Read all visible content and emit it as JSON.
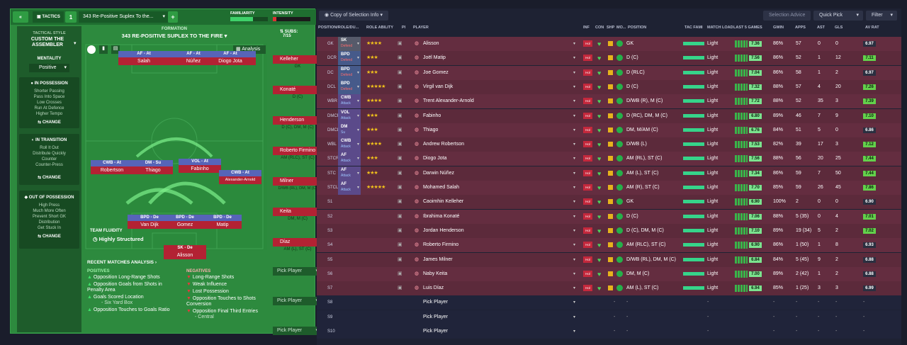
{
  "tactics": {
    "tab_label": "TACTICS",
    "slot_number": "1",
    "tactic_name": "343 Re-Positive  Suplex To the...",
    "familiarity_label": "FAMILIARITY",
    "intensity_label": "INTENSITY"
  },
  "style": {
    "tactical_style_label": "TACTICAL STYLE",
    "tactical_style": "CUSTOM THE ASSEMBLER",
    "mentality_label": "MENTALITY",
    "mentality": "Positive",
    "in_possession": {
      "title": "IN POSSESSION",
      "items": [
        "Shorter Passing",
        "Pass Into Space",
        "Low Crosses",
        "Run At Defence",
        "Higher Tempo"
      ]
    },
    "in_transition": {
      "title": "IN TRANSITION",
      "items": [
        "Roll It Out",
        "Distribute Quickly",
        "Counter",
        "Counter-Press"
      ]
    },
    "out_of_possession": {
      "title": "OUT OF POSSESSION",
      "items": [
        "High Press",
        "Much More Often",
        "Prevent Short GK",
        "Distribution",
        "Get Stuck In"
      ]
    },
    "change_label": "CHANGE"
  },
  "formation": {
    "label": "FORMATION",
    "name": "343 RE-POSITIVE  SUPLEX TO THE FIRE",
    "subs_label": "SUBS:",
    "subs_count": "7/15",
    "analysis_label": "Analysis",
    "fluidity_label": "TEAM FLUIDITY",
    "fluidity": "Highly Structured"
  },
  "pitch_players": [
    {
      "role": "AF - At",
      "name": "Salah"
    },
    {
      "role": "AF - At",
      "name": "Núñez"
    },
    {
      "role": "AF - At",
      "name": "Diogo Jota"
    },
    {
      "role": "CWB - At",
      "name": "Robertson"
    },
    {
      "role": "DM - Su",
      "name": "Thiago"
    },
    {
      "role": "VOL - At",
      "name": "Fabinho"
    },
    {
      "role": "CWB - At",
      "name": "Alexander-Arnold"
    },
    {
      "role": "BPD - De",
      "name": "Van Dijk"
    },
    {
      "role": "BPD - De",
      "name": "Gomez"
    },
    {
      "role": "BPD - De",
      "name": "Matip"
    },
    {
      "role": "SK - De",
      "name": "Alisson"
    }
  ],
  "subs": [
    {
      "name": "Kelleher",
      "pos": "GK"
    },
    {
      "name": "Konaté",
      "pos": "D (C)"
    },
    {
      "name": "Henderson",
      "pos": "D (C), DM, M (C)"
    },
    {
      "name": "Roberto Firmino",
      "pos": "AM (RLC), ST (C)"
    },
    {
      "name": "Milner",
      "pos": "D/WB (RL), DM, M (C)"
    },
    {
      "name": "Keita",
      "pos": "DM, M (C)"
    },
    {
      "name": "Díaz",
      "pos": "AM (L), ST (C)"
    }
  ],
  "pick_player_label": "Pick Player",
  "analysis": {
    "title": "RECENT MATCHES ANALYSIS",
    "positives_label": "POSITIVES",
    "negatives_label": "NEGATIVES",
    "positives": [
      "Opposition Long-Range Shots",
      "Opposition Goals from Shots in Penalty Area",
      "Goals Scored Location",
      "- Six Yard Box",
      "Opposition Touches to Goals Ratio"
    ],
    "negatives": [
      "Long-Range Shots",
      "Weak Influence",
      "Lost Possession",
      "Opposition Touches to Shots Conversion",
      "Opposition Final Third Entries",
      "- Central"
    ]
  },
  "toolbar": {
    "copy_label": "Copy of Selection Info",
    "selection_advice": "Selection Advice",
    "quick_pick": "Quick Pick",
    "filter": "Filter"
  },
  "columns": [
    "POSITION/ROLE/DU...",
    "ROLE ABILITY",
    "PI",
    "PLAYER",
    "INF",
    "CON",
    "SHP",
    "MO...",
    "POSITION",
    "TAC FAMI",
    "MATCH LOAD",
    "LAST 5 GAMES",
    "GWIN",
    "APPS",
    "AST",
    "GLS",
    "AV RAT"
  ],
  "rows": [
    {
      "slot": "GK",
      "role": "SK",
      "duty": "Defend",
      "stars": "★★★★",
      "player": "Alisson",
      "position": "GK",
      "load": "Light",
      "last5": "7.36",
      "gwin": "86%",
      "apps": "57",
      "ast": "0",
      "gls": "0",
      "avr": "6.97"
    },
    {
      "slot": "DCR",
      "role": "BPD",
      "duty": "Defend",
      "stars": "★★★",
      "player": "Joël Matip",
      "position": "D (C)",
      "load": "Light",
      "last5": "7.56",
      "gwin": "86%",
      "apps": "52",
      "ast": "1",
      "gls": "12",
      "avr": "7.11"
    },
    {
      "slot": "DC",
      "role": "BPD",
      "duty": "Defend",
      "stars": "★★★",
      "player": "Joe Gomez",
      "position": "D (RLC)",
      "load": "Light",
      "last5": "7.04",
      "gwin": "86%",
      "apps": "58",
      "ast": "1",
      "gls": "2",
      "avr": "6.97"
    },
    {
      "slot": "DCL",
      "role": "BPD",
      "duty": "Defend",
      "stars": "★★★★★",
      "player": "Virgil van Dijk",
      "position": "D (C)",
      "load": "Light",
      "last5": "7.32",
      "gwin": "88%",
      "apps": "57",
      "ast": "4",
      "gls": "20",
      "avr": "7.26"
    },
    {
      "slot": "WBR",
      "role": "CWB",
      "duty": "Attack",
      "stars": "★★★★",
      "player": "Trent Alexander-Arnold",
      "position": "D/WB (R), M (C)",
      "load": "Light",
      "last5": "7.72",
      "gwin": "88%",
      "apps": "52",
      "ast": "35",
      "gls": "3",
      "avr": "7.39"
    },
    {
      "slot": "DMCR",
      "role": "VOL",
      "duty": "Attack",
      "stars": "★★★",
      "player": "Fabinho",
      "position": "D (RC), DM, M (C)",
      "load": "Light",
      "last5": "6.80",
      "gwin": "89%",
      "apps": "46",
      "ast": "7",
      "gls": "9",
      "avr": "7.10"
    },
    {
      "slot": "DMCL",
      "role": "DM",
      "duty": "Su",
      "stars": "★★★",
      "player": "Thiago",
      "position": "DM, M/AM (C)",
      "load": "Light",
      "last5": "6.76",
      "gwin": "84%",
      "apps": "51",
      "ast": "5",
      "gls": "0",
      "avr": "6.86"
    },
    {
      "slot": "WBL",
      "role": "CWB",
      "duty": "Attack",
      "stars": "★★★★",
      "player": "Andrew Robertson",
      "position": "D/WB (L)",
      "load": "Light",
      "last5": "7.53",
      "gwin": "82%",
      "apps": "39",
      "ast": "17",
      "gls": "3",
      "avr": "7.12"
    },
    {
      "slot": "STCR",
      "role": "AF",
      "duty": "Attack",
      "stars": "★★★",
      "player": "Diogo Jota",
      "position": "AM (RL), ST (C)",
      "load": "Light",
      "last5": "7.56",
      "gwin": "88%",
      "apps": "56",
      "ast": "20",
      "gls": "25",
      "avr": "7.44"
    },
    {
      "slot": "STC",
      "role": "AF",
      "duty": "Attack",
      "stars": "★★★",
      "player": "Darwin Núñez",
      "position": "AM (L), ST (C)",
      "load": "Light",
      "last5": "7.34",
      "gwin": "86%",
      "apps": "59",
      "ast": "7",
      "gls": "50",
      "avr": "7.44"
    },
    {
      "slot": "STCL",
      "role": "AF",
      "duty": "Attack",
      "stars": "★★★★★",
      "player": "Mohamed Salah",
      "position": "AM (R), ST (C)",
      "load": "Light",
      "last5": "7.70",
      "gwin": "85%",
      "apps": "59",
      "ast": "26",
      "gls": "45",
      "avr": "7.86"
    },
    {
      "slot": "S1",
      "role": "",
      "duty": "",
      "stars": "",
      "player": "Caoimhin Kelleher",
      "position": "GK",
      "load": "Light",
      "last5": "6.90",
      "gwin": "100%",
      "apps": "2",
      "ast": "0",
      "gls": "0",
      "avr": "6.90"
    },
    {
      "slot": "S2",
      "role": "",
      "duty": "",
      "stars": "",
      "player": "Ibrahima Konaté",
      "position": "D (C)",
      "load": "Light",
      "last5": "7.06",
      "gwin": "88%",
      "apps": "5 (35)",
      "ast": "0",
      "gls": "4",
      "avr": "7.01"
    },
    {
      "slot": "S3",
      "role": "",
      "duty": "",
      "stars": "",
      "player": "Jordan Henderson",
      "position": "D (C), DM, M (C)",
      "load": "Light",
      "last5": "7.10",
      "gwin": "89%",
      "apps": "19 (34)",
      "ast": "5",
      "gls": "2",
      "avr": "7.02"
    },
    {
      "slot": "S4",
      "role": "",
      "duty": "",
      "stars": "",
      "player": "Roberto Firmino",
      "position": "AM (RLC), ST (C)",
      "load": "Light",
      "last5": "6.90",
      "gwin": "86%",
      "apps": "1 (50)",
      "ast": "1",
      "gls": "8",
      "avr": "6.93"
    },
    {
      "slot": "S5",
      "role": "",
      "duty": "",
      "stars": "",
      "player": "James Milner",
      "position": "D/WB (RL), DM, M (C)",
      "load": "Light",
      "last5": "6.84",
      "gwin": "84%",
      "apps": "5 (45)",
      "ast": "9",
      "gls": "2",
      "avr": "6.88"
    },
    {
      "slot": "S6",
      "role": "",
      "duty": "",
      "stars": "",
      "player": "Naby Keita",
      "position": "DM, M (C)",
      "load": "Light",
      "last5": "7.00",
      "gwin": "89%",
      "apps": "2 (42)",
      "ast": "1",
      "gls": "2",
      "avr": "6.88"
    },
    {
      "slot": "S7",
      "role": "",
      "duty": "",
      "stars": "",
      "player": "Luis Díaz",
      "position": "AM (L), ST (C)",
      "load": "Light",
      "last5": "6.94",
      "gwin": "85%",
      "apps": "1 (25)",
      "ast": "3",
      "gls": "3",
      "avr": "6.99"
    },
    {
      "slot": "S8",
      "player": "Pick Player",
      "empty": true
    },
    {
      "slot": "S9",
      "player": "Pick Player",
      "empty": true
    },
    {
      "slot": "S10",
      "player": "Pick Player",
      "empty": true
    }
  ],
  "dash": "-"
}
